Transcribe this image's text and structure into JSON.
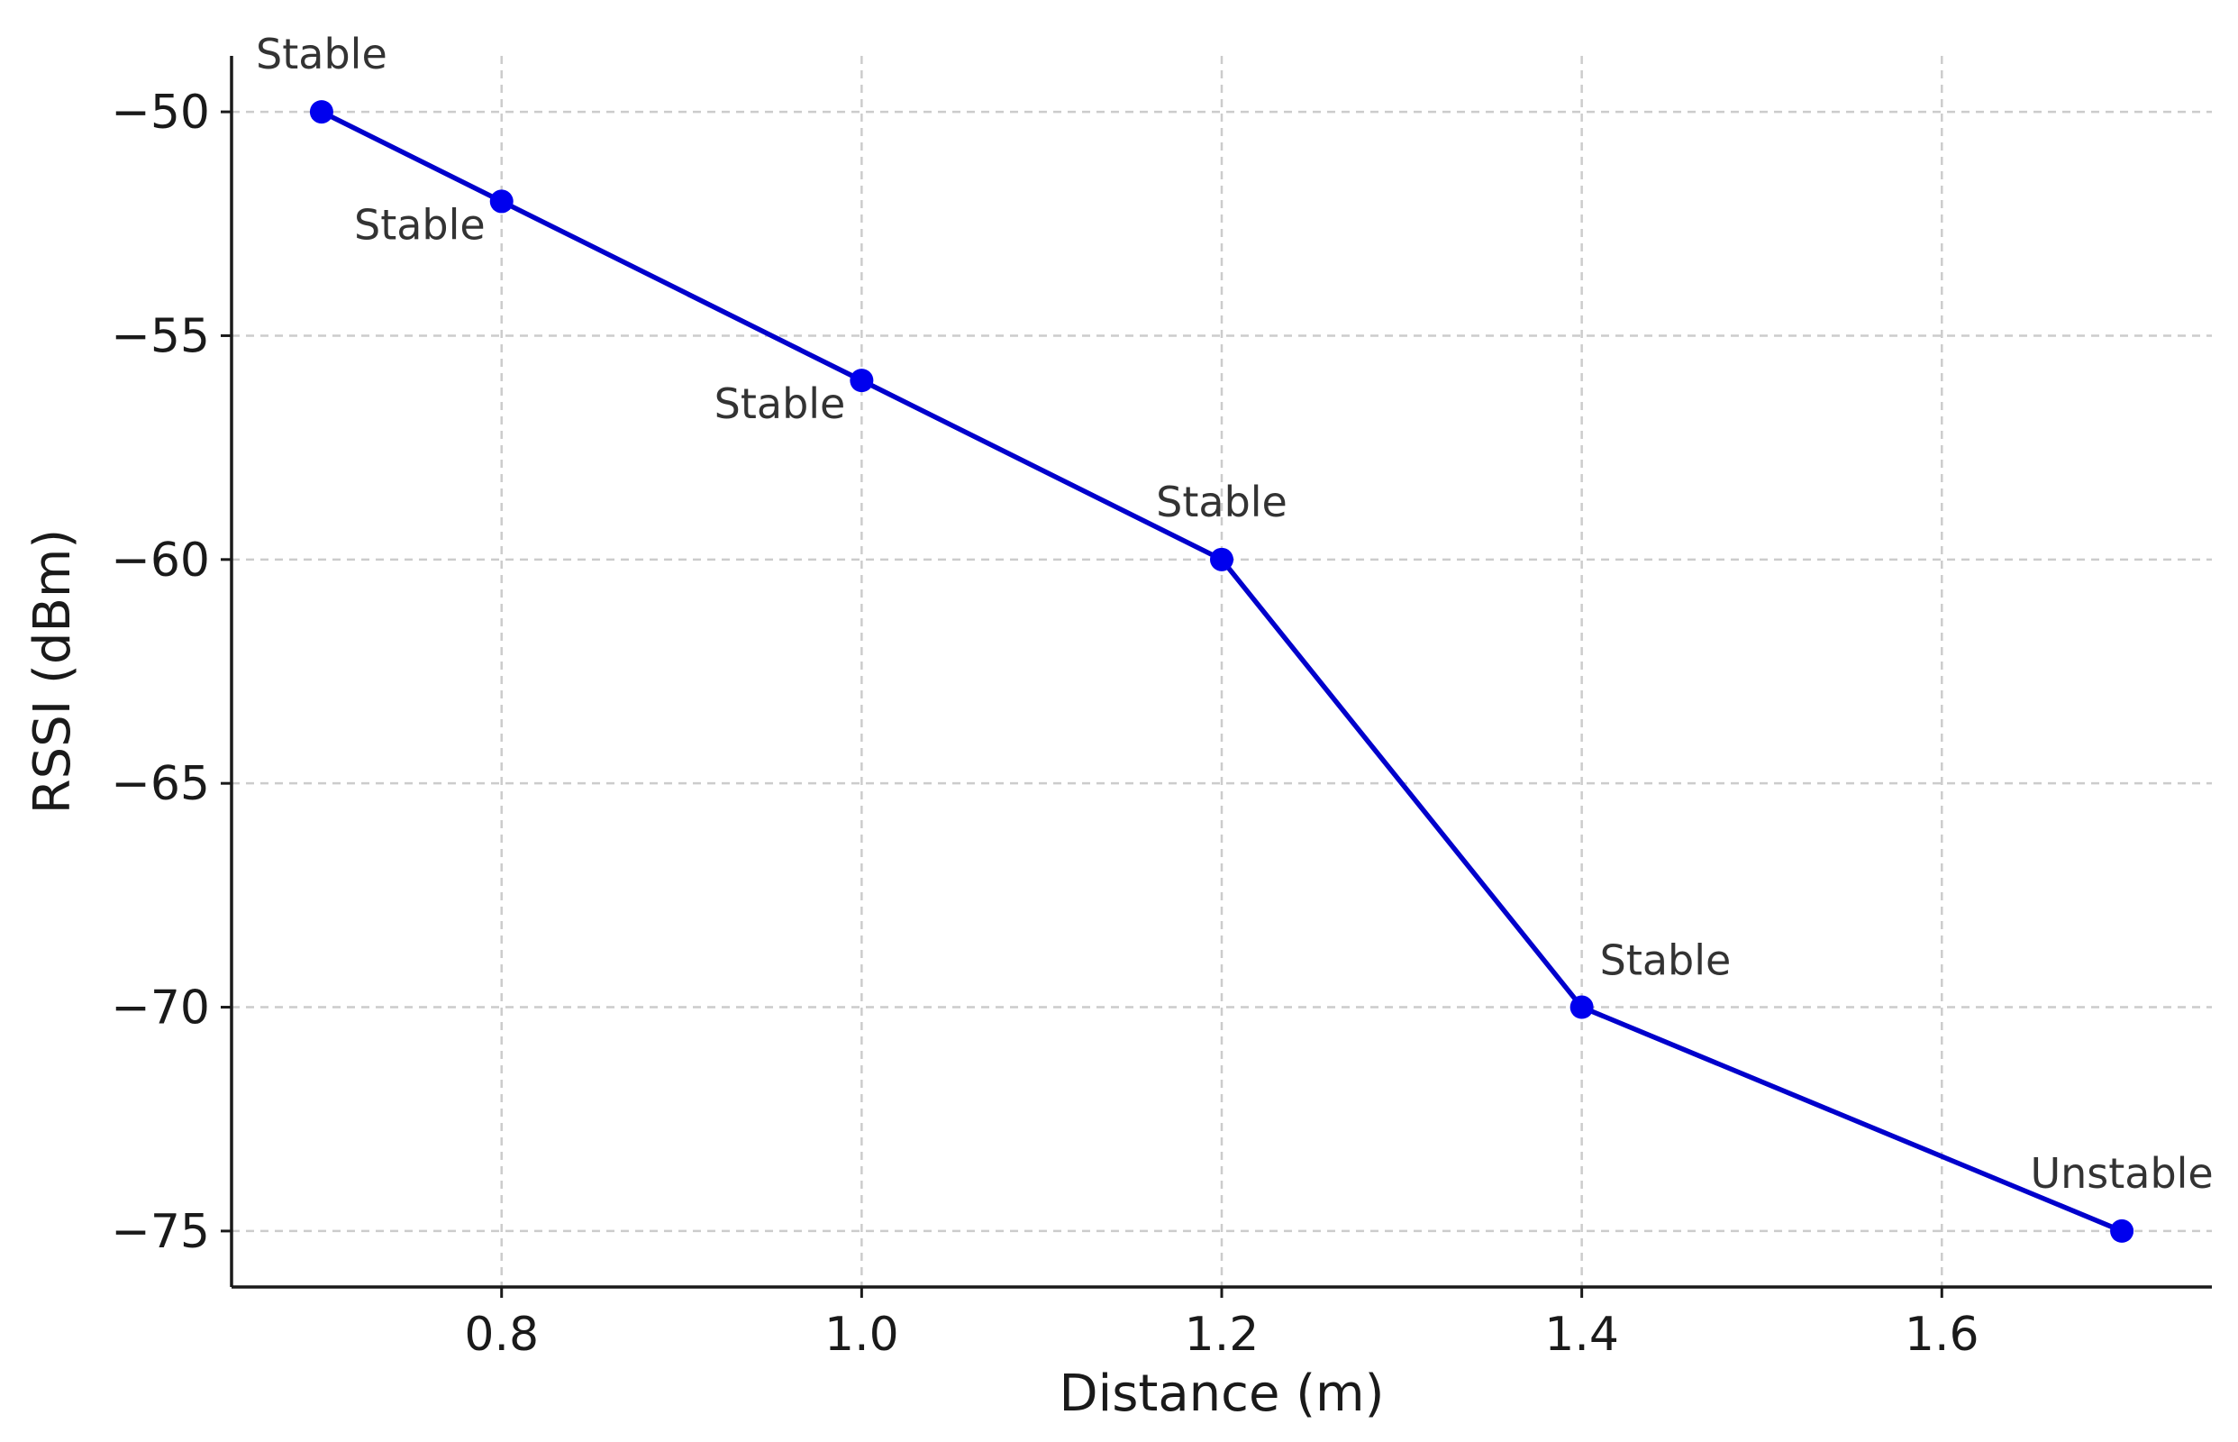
{
  "chart_data": {
    "type": "line",
    "title": "",
    "xlabel": "Distance (m)",
    "ylabel": "RSSI (dBm)",
    "xlim": [
      0.65,
      1.75
    ],
    "ylim": [
      -76.25,
      -48.75
    ],
    "xticks": [
      0.8,
      1.0,
      1.2,
      1.4,
      1.6
    ],
    "xtick_labels": [
      "0.8",
      "1.0",
      "1.2",
      "1.4",
      "1.6"
    ],
    "yticks": [
      -50,
      -55,
      -60,
      -65,
      -70,
      -75
    ],
    "ytick_labels": [
      "−50",
      "−55",
      "−60",
      "−65",
      "−70",
      "−75"
    ],
    "grid": true,
    "series": [
      {
        "color": "#0000cc",
        "marker_color": "#0000ee",
        "points": [
          {
            "x": 0.7,
            "y": -50,
            "label": "Stable",
            "label_pos": "above"
          },
          {
            "x": 0.8,
            "y": -52,
            "label": "Stable",
            "label_pos": "below-left"
          },
          {
            "x": 1.0,
            "y": -56,
            "label": "Stable",
            "label_pos": "below-left"
          },
          {
            "x": 1.2,
            "y": -60,
            "label": "Stable",
            "label_pos": "above"
          },
          {
            "x": 1.4,
            "y": -70,
            "label": "Stable",
            "label_pos": "above-right"
          },
          {
            "x": 1.7,
            "y": -75,
            "label": "Unstable",
            "label_pos": "above"
          }
        ]
      }
    ]
  }
}
